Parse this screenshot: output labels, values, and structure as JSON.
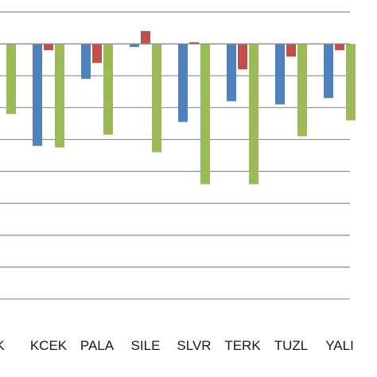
{
  "chart_data": {
    "type": "bar",
    "categories": [
      "K",
      "KCEK",
      "PALA",
      "SILE",
      "SLVR",
      "TERK",
      "TUZL",
      "YALI"
    ],
    "series": [
      {
        "color": "#4f81bd",
        "values": [
          null,
          -3.2,
          -1.1,
          -0.1,
          -2.45,
          -1.8,
          -1.9,
          -1.7
        ]
      },
      {
        "color": "#c0504d",
        "values": [
          null,
          -0.2,
          -0.6,
          0.4,
          0.05,
          -0.8,
          -0.4,
          -0.2
        ]
      },
      {
        "color": "#9bbb59",
        "values": [
          -2.2,
          -3.25,
          -2.85,
          -3.4,
          -4.4,
          -4.4,
          -2.9,
          -2.4
        ]
      }
    ],
    "ylim": [
      -8.5,
      1.0
    ],
    "grid": true
  }
}
